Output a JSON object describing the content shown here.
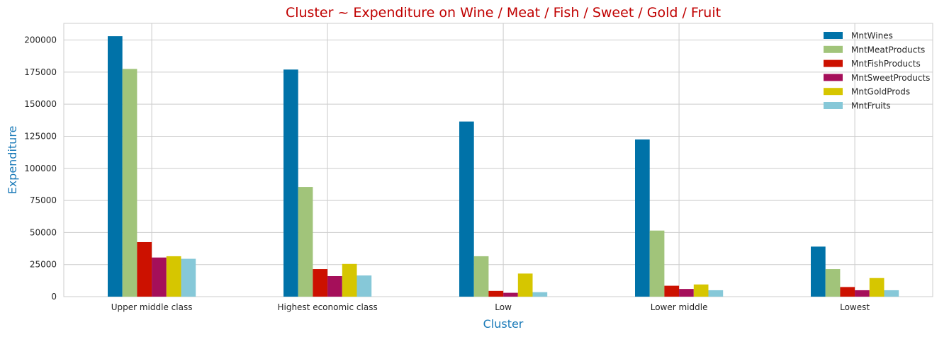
{
  "chart_data": {
    "type": "bar",
    "title": "Cluster ~ Expenditure on Wine / Meat / Fish / Sweet / Gold / Fruit",
    "xlabel": "Cluster",
    "ylabel": "Expenditure",
    "categories": [
      "Upper middle class",
      "Highest economic class",
      "Low",
      "Lower middle",
      "Lowest"
    ],
    "ylim": [
      0,
      213000
    ],
    "yticks": [
      0,
      25000,
      50000,
      75000,
      100000,
      125000,
      150000,
      175000,
      200000
    ],
    "grid": true,
    "legend_position": "top-right",
    "series": [
      {
        "name": "MntWines",
        "color": "#0072a8",
        "values": [
          203000,
          177000,
          136500,
          122500,
          39000
        ]
      },
      {
        "name": "MntMeatProducts",
        "color": "#a1c47a",
        "values": [
          177500,
          85500,
          31500,
          51500,
          21500
        ]
      },
      {
        "name": "MntFishProducts",
        "color": "#cc1100",
        "values": [
          42500,
          21500,
          4500,
          8500,
          7500
        ]
      },
      {
        "name": "MntSweetProducts",
        "color": "#a50f5a",
        "values": [
          30500,
          16000,
          3000,
          6000,
          5000
        ]
      },
      {
        "name": "MntGoldProds",
        "color": "#d6c600",
        "values": [
          31500,
          25500,
          18000,
          9500,
          14500
        ]
      },
      {
        "name": "MntFruits",
        "color": "#86c8d8",
        "values": [
          29500,
          16500,
          3500,
          5000,
          5000
        ]
      }
    ]
  }
}
